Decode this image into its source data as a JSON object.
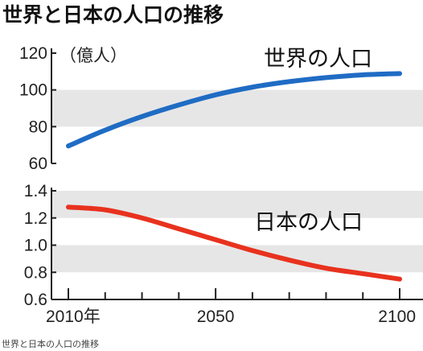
{
  "title": "世界と日本の人口の推移",
  "caption": "世界と日本の人口の推移",
  "chart_data": [
    {
      "type": "line",
      "panel": "top",
      "unit_label": "（億人）",
      "ylim": [
        60,
        120
      ],
      "yticks": [
        "120",
        "100",
        "80",
        "60"
      ],
      "xlim": [
        2010,
        2100
      ],
      "series": [
        {
          "name": "世界の人口",
          "color": "#1f6cc4",
          "x": [
            2010,
            2020,
            2030,
            2040,
            2050,
            2060,
            2070,
            2080,
            2090,
            2100
          ],
          "values": [
            69.5,
            78.1,
            85.5,
            91.8,
            97.3,
            101.5,
            104.5,
            106.7,
            108.2,
            108.9
          ]
        }
      ]
    },
    {
      "type": "line",
      "panel": "bottom",
      "ylim": [
        0.6,
        1.4
      ],
      "yticks": [
        "1.4",
        "1.2",
        "1.0",
        "0.8",
        "0.6"
      ],
      "xlim": [
        2010,
        2100
      ],
      "xticks": [
        {
          "value": 2010,
          "label": "2010年"
        },
        {
          "value": 2050,
          "label": "2050"
        },
        {
          "value": 2100,
          "label": "2100"
        }
      ],
      "series": [
        {
          "name": "日本の人口",
          "color": "#e8321e",
          "x": [
            2010,
            2020,
            2030,
            2040,
            2050,
            2060,
            2070,
            2080,
            2090,
            2100
          ],
          "values": [
            1.28,
            1.26,
            1.2,
            1.12,
            1.04,
            0.96,
            0.89,
            0.83,
            0.79,
            0.75
          ]
        }
      ]
    }
  ],
  "colors": {
    "band": "#e6e6e6",
    "axis": "#222222"
  }
}
